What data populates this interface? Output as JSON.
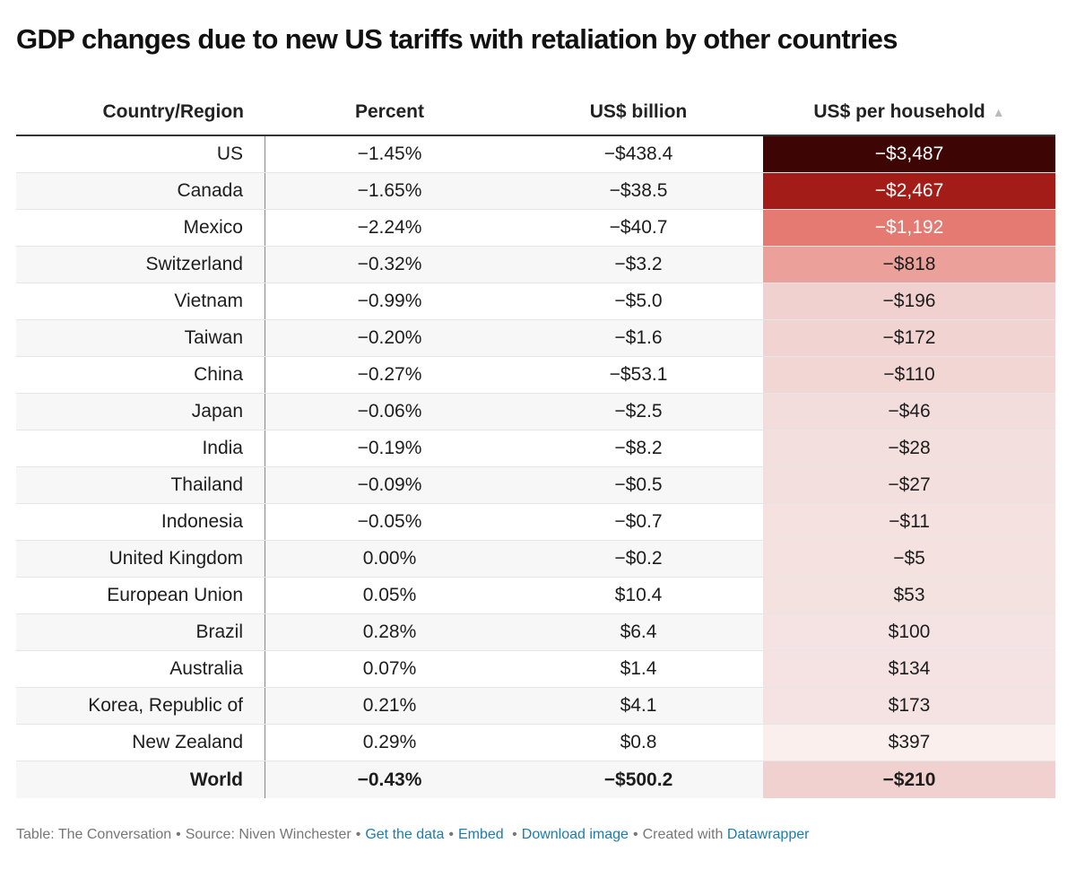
{
  "title": "GDP changes due to new US tariffs with retaliation by other countries",
  "colors": {
    "heat": [
      "#3d0604",
      "#a31c17",
      "#e47a72",
      "#eba19a",
      "#f0d1cf",
      "#f1d3d1",
      "#f2d6d4",
      "#f3dddc",
      "#f3dfde",
      "#f3dfde",
      "#f4e1e0",
      "#f4e1e0",
      "#f4e2e1",
      "#f4e3e2",
      "#f4e3e2",
      "#f4e3e2",
      "#faefed",
      "#f1d1cf"
    ],
    "link": "#1b7cb3"
  },
  "chart_data": {
    "type": "table",
    "title": "GDP changes due to new US tariffs with retaliation by other countries",
    "columns": [
      "Country/Region",
      "Percent",
      "US$ billion",
      "US$ per household"
    ],
    "sorted_column": "US$ per household",
    "sort_direction": "ascending",
    "rows": [
      {
        "country": "US",
        "percent": "−1.45%",
        "billion": "−$438.4",
        "household": "−$3,487",
        "household_value": -3487
      },
      {
        "country": "Canada",
        "percent": "−1.65%",
        "billion": "−$38.5",
        "household": "−$2,467",
        "household_value": -2467
      },
      {
        "country": "Mexico",
        "percent": "−2.24%",
        "billion": "−$40.7",
        "household": "−$1,192",
        "household_value": -1192
      },
      {
        "country": "Switzerland",
        "percent": "−0.32%",
        "billion": "−$3.2",
        "household": "−$818",
        "household_value": -818
      },
      {
        "country": "Vietnam",
        "percent": "−0.99%",
        "billion": "−$5.0",
        "household": "−$196",
        "household_value": -196
      },
      {
        "country": "Taiwan",
        "percent": "−0.20%",
        "billion": "−$1.6",
        "household": "−$172",
        "household_value": -172
      },
      {
        "country": "China",
        "percent": "−0.27%",
        "billion": "−$53.1",
        "household": "−$110",
        "household_value": -110
      },
      {
        "country": "Japan",
        "percent": "−0.06%",
        "billion": "−$2.5",
        "household": "−$46",
        "household_value": -46
      },
      {
        "country": "India",
        "percent": "−0.19%",
        "billion": "−$8.2",
        "household": "−$28",
        "household_value": -28
      },
      {
        "country": "Thailand",
        "percent": "−0.09%",
        "billion": "−$0.5",
        "household": "−$27",
        "household_value": -27
      },
      {
        "country": "Indonesia",
        "percent": "−0.05%",
        "billion": "−$0.7",
        "household": "−$11",
        "household_value": -11
      },
      {
        "country": "United Kingdom",
        "percent": "0.00%",
        "billion": "−$0.2",
        "household": "−$5",
        "household_value": -5
      },
      {
        "country": "European Union",
        "percent": "0.05%",
        "billion": "$10.4",
        "household": "$53",
        "household_value": 53
      },
      {
        "country": "Brazil",
        "percent": "0.28%",
        "billion": "$6.4",
        "household": "$100",
        "household_value": 100
      },
      {
        "country": "Australia",
        "percent": "0.07%",
        "billion": "$1.4",
        "household": "$134",
        "household_value": 134
      },
      {
        "country": "Korea, Republic of",
        "percent": "0.21%",
        "billion": "$4.1",
        "household": "$173",
        "household_value": 173
      },
      {
        "country": "New Zealand",
        "percent": "0.29%",
        "billion": "$0.8",
        "household": "$397",
        "household_value": 397
      },
      {
        "country": "World",
        "percent": "−0.43%",
        "billion": "−$500.2",
        "household": "−$210",
        "household_value": -210,
        "total": true
      }
    ]
  },
  "header": {
    "country": "Country/Region",
    "percent": "Percent",
    "billion": "US$ billion",
    "household": "US$ per household",
    "sort_glyph": "▲"
  },
  "footer": {
    "table_credit": "Table: The Conversation",
    "source": "Source: Niven Winchester",
    "get_data": "Get the data",
    "embed": "Embed",
    "download": "Download image",
    "created_with": "Created with",
    "datawrapper": "Datawrapper",
    "sep": "•"
  }
}
